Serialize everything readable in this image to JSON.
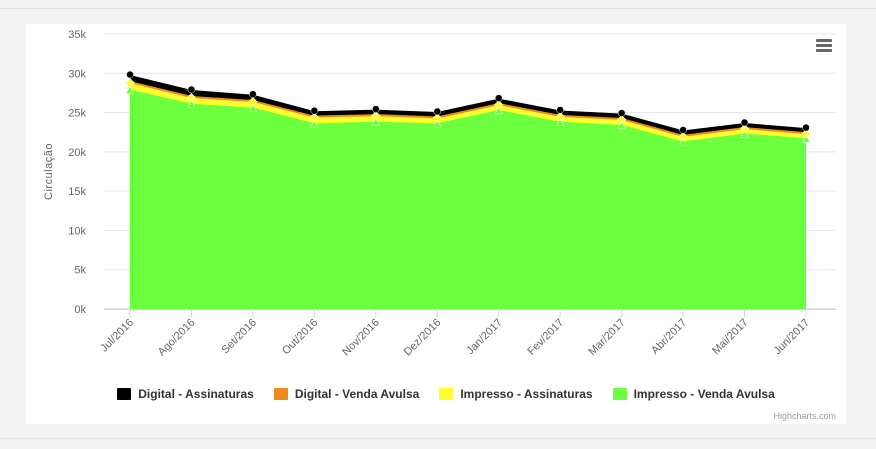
{
  "chart_data": {
    "type": "area",
    "stacking": "normal",
    "categories": [
      "Jul/2016",
      "Ago/2016",
      "Set/2016",
      "Out/2016",
      "Nov/2016",
      "Dez/2016",
      "Jan/2017",
      "Fev/2017",
      "Mar/2017",
      "Abr/2017",
      "Mai/2017",
      "Jun/2017"
    ],
    "ylabel": "Circulação",
    "ylim": [
      0,
      35000
    ],
    "yticks": [
      0,
      5000,
      10000,
      15000,
      20000,
      25000,
      30000,
      35000
    ],
    "ytick_labels": [
      "0k",
      "5k",
      "10k",
      "15k",
      "20k",
      "25k",
      "30k",
      "35k"
    ],
    "grid": true,
    "legend_position": "bottom",
    "series": [
      {
        "name": "Impresso - Venda Avulsa",
        "color": "#6cff3d",
        "values": [
          27800,
          26000,
          25500,
          23500,
          23700,
          23500,
          25200,
          23700,
          23300,
          21200,
          22200,
          21600
        ]
      },
      {
        "name": "Impresso - Assinaturas",
        "color": "#ffff2e",
        "values": [
          1000,
          900,
          900,
          900,
          900,
          800,
          800,
          800,
          800,
          750,
          750,
          700
        ]
      },
      {
        "name": "Digital - Venda Avulsa",
        "color": "#f08a1e",
        "values": [
          80,
          80,
          80,
          80,
          80,
          80,
          80,
          80,
          80,
          80,
          80,
          80
        ]
      },
      {
        "name": "Digital - Assinaturas",
        "color": "#000000",
        "values": [
          700,
          700,
          600,
          500,
          500,
          500,
          500,
          500,
          500,
          500,
          450,
          450
        ]
      }
    ]
  },
  "legend": {
    "items": [
      {
        "label": "Digital - Assinaturas",
        "color": "#000000"
      },
      {
        "label": "Digital - Venda Avulsa",
        "color": "#f08a1e"
      },
      {
        "label": "Impresso - Assinaturas",
        "color": "#ffff2e"
      },
      {
        "label": "Impresso - Venda Avulsa",
        "color": "#6cff3d"
      }
    ]
  },
  "credits": "Highcharts.com",
  "menu_icon": "hamburger-menu-icon"
}
